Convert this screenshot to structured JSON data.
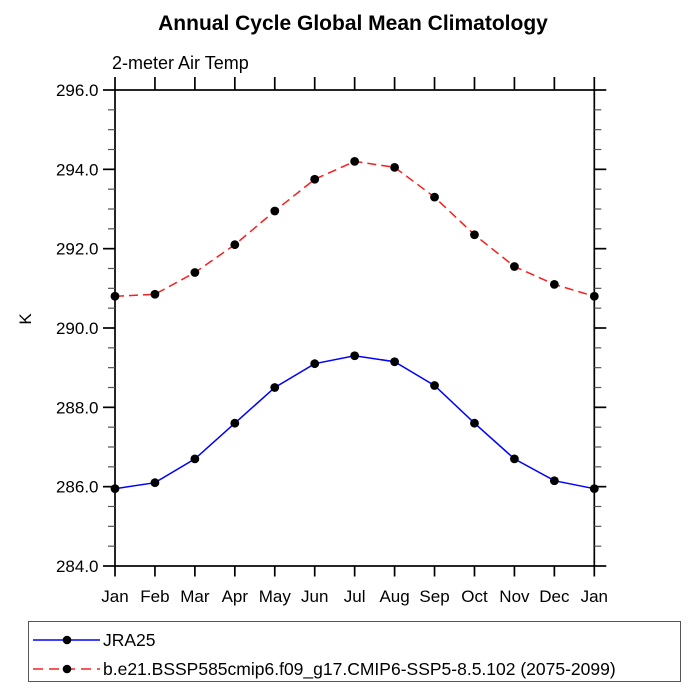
{
  "chart_data": {
    "type": "line",
    "title": "Annual Cycle Global Mean Climatology",
    "subtitle": "2-meter Air Temp",
    "ylabel": "K",
    "ylim": [
      284.0,
      296.0
    ],
    "ytick_major_interval": 2.0,
    "ytick_minor_interval": 0.5,
    "ytick_labels": [
      "296.0",
      "294.0",
      "292.0",
      "290.0",
      "288.0",
      "286.0",
      "284.0"
    ],
    "categories": [
      "Jan",
      "Feb",
      "Mar",
      "Apr",
      "May",
      "Jun",
      "Jul",
      "Aug",
      "Sep",
      "Oct",
      "Nov",
      "Dec",
      "Jan"
    ],
    "grid": false,
    "legend_position": "bottom-left-box",
    "marker": {
      "shape": "circle",
      "color": "#000000",
      "radius": 4.4
    },
    "series": [
      {
        "name": "JRA25",
        "color": "#0000ff",
        "line_style": "solid",
        "values": [
          285.95,
          286.1,
          286.7,
          287.6,
          288.5,
          289.1,
          289.3,
          289.15,
          288.55,
          287.6,
          286.7,
          286.15,
          285.95
        ]
      },
      {
        "name": "b.e21.BSSP585cmip6.f09_g17.CMIP6-SSP5-8.5.102 (2075-2099)",
        "color": "#f81e1e",
        "line_style": "dashed",
        "values": [
          290.8,
          290.85,
          291.4,
          292.1,
          292.95,
          293.75,
          294.2,
          294.05,
          293.3,
          292.35,
          291.55,
          291.1,
          290.8
        ]
      }
    ]
  }
}
